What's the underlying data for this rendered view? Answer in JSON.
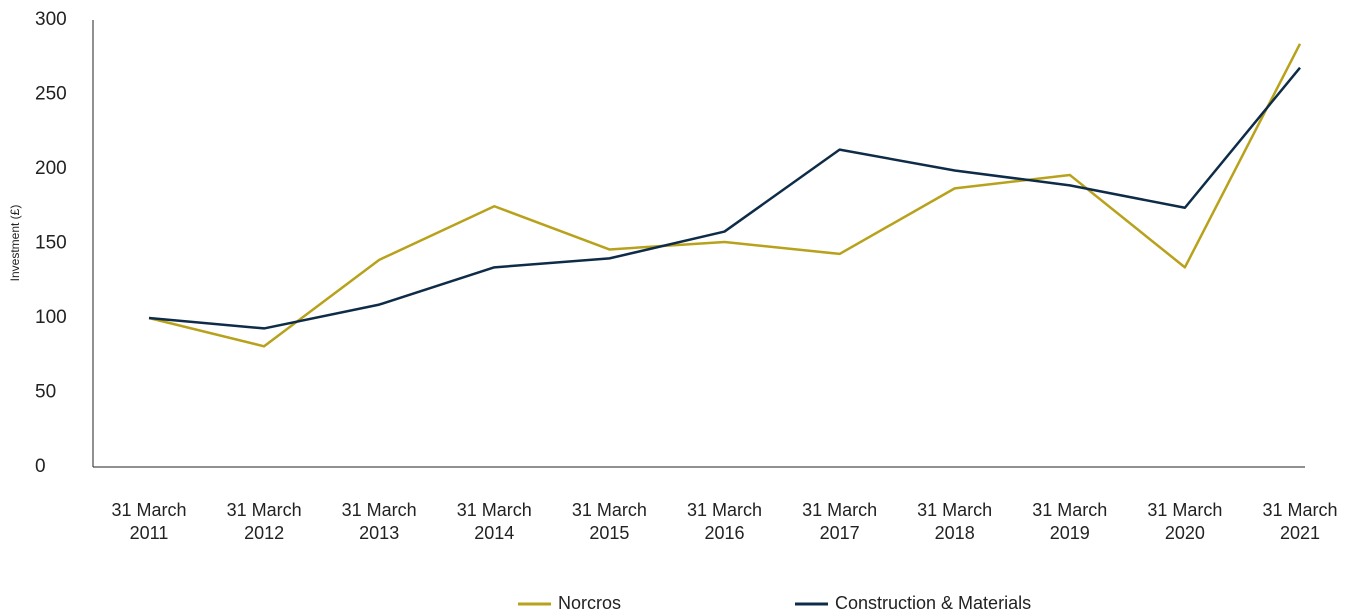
{
  "chart_data": {
    "type": "line",
    "y_label": "Investment (£)",
    "categories": [
      "31 March 2011",
      "31 March 2012",
      "31 March 2013",
      "31 March 2014",
      "31 March 2015",
      "31 March 2016",
      "31 March 2017",
      "31 March 2018",
      "31 March 2019",
      "31 March 2020",
      "31 March 2021"
    ],
    "series": [
      {
        "name": "Norcros",
        "color": "#b8a21c",
        "values": [
          100,
          81,
          139,
          175,
          146,
          151,
          143,
          187,
          196,
          134,
          284
        ]
      },
      {
        "name": "Construction & Materials",
        "color": "#0e2c48",
        "values": [
          100,
          93,
          109,
          134,
          140,
          158,
          213,
          199,
          189,
          174,
          268
        ]
      }
    ],
    "ylim": [
      0,
      300
    ],
    "yticks": [
      0,
      50,
      100,
      150,
      200,
      250,
      300
    ],
    "grid": false
  }
}
